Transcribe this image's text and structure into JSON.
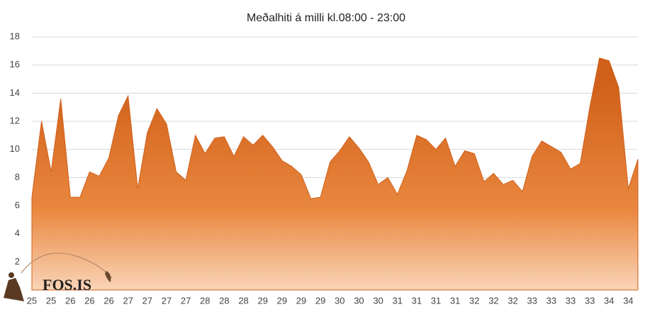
{
  "chart_data": {
    "type": "area",
    "title": "Meðalhiti  á milli kl.08:00 - 23:00",
    "categories": [
      "25",
      null,
      "25",
      null,
      "26",
      null,
      "26",
      null,
      "26",
      null,
      "27",
      null,
      "27",
      null,
      "27",
      null,
      "27",
      null,
      "28",
      null,
      "28",
      null,
      "28",
      null,
      "29",
      null,
      "29",
      null,
      "29",
      null,
      "29",
      null,
      "30",
      null,
      "30",
      null,
      "30",
      null,
      "31",
      null,
      "31",
      null,
      "31",
      null,
      "31",
      null,
      "32",
      null,
      "32",
      null,
      "32",
      null,
      "33",
      null,
      "33",
      null,
      "33",
      null,
      "33",
      null,
      "34",
      null,
      "34",
      null
    ],
    "values": [
      6.6,
      12.0,
      8.4,
      13.6,
      6.6,
      6.6,
      8.4,
      8.1,
      9.4,
      12.4,
      13.8,
      7.2,
      11.2,
      12.9,
      11.8,
      8.4,
      7.8,
      11.0,
      9.7,
      10.8,
      10.9,
      9.5,
      10.9,
      10.3,
      11.0,
      10.2,
      9.2,
      8.8,
      8.2,
      6.5,
      6.6,
      9.1,
      9.9,
      10.9,
      10.1,
      9.1,
      7.5,
      8.0,
      6.8,
      8.5,
      11.0,
      10.7,
      10.0,
      10.8,
      8.8,
      9.9,
      9.7,
      7.7,
      8.3,
      7.5,
      7.8,
      7.0,
      9.5,
      10.6,
      10.2,
      9.8,
      8.6,
      9.0,
      13.0,
      16.5,
      16.3,
      14.4,
      7.2,
      9.3
    ],
    "color": "#d0601a",
    "ylim": [
      0,
      18
    ],
    "yticks": [
      2,
      4,
      6,
      8,
      10,
      12,
      14,
      16,
      18
    ],
    "grid": true,
    "logo": "FOS.IS"
  }
}
